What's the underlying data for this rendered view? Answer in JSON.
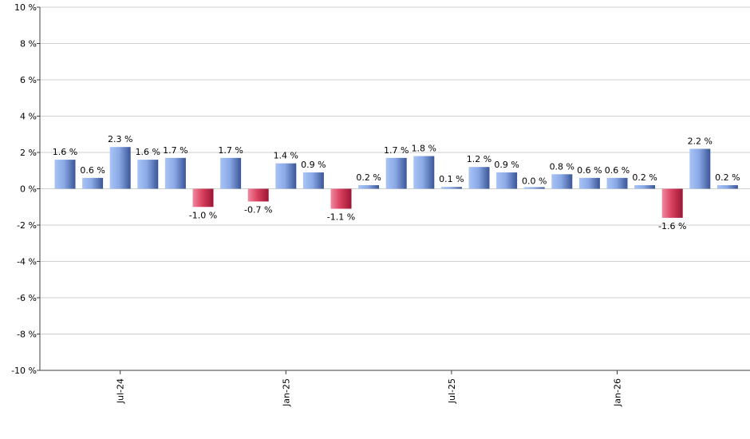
{
  "chart_data": {
    "type": "bar",
    "title": "",
    "xlabel": "",
    "ylabel": "",
    "ylim": [
      -10,
      10
    ],
    "y_ticks": [
      10,
      8,
      6,
      4,
      2,
      0,
      -2,
      -4,
      -6,
      -8,
      -10
    ],
    "y_tick_suffix": " %",
    "grid": true,
    "x_tick_labels": [
      {
        "label": "Jul-24",
        "bar_index": 2
      },
      {
        "label": "Jan-25",
        "bar_index": 8
      },
      {
        "label": "Jul-25",
        "bar_index": 14
      },
      {
        "label": "Jan-26",
        "bar_index": 20
      }
    ],
    "values": [
      1.6,
      0.6,
      2.3,
      1.6,
      1.7,
      -1.0,
      1.7,
      -0.7,
      1.4,
      0.9,
      -1.1,
      0.2,
      1.7,
      1.8,
      0.1,
      1.2,
      0.9,
      0.0,
      0.8,
      0.6,
      0.6,
      0.2,
      -1.6,
      2.2,
      0.2
    ],
    "value_labels": [
      "1.6 %",
      "0.6 %",
      "2.3 %",
      "1.6 %",
      "1.7 %",
      "-1.0 %",
      "1.7 %",
      "-0.7 %",
      "1.4 %",
      "0.9 %",
      "-1.1 %",
      "0.2 %",
      "1.7 %",
      "1.8 %",
      "0.1 %",
      "1.2 %",
      "0.9 %",
      "0.0 %",
      "0.8 %",
      "0.6 %",
      "0.6 %",
      "0.2 %",
      "-1.6 %",
      "2.2 %",
      "0.2 %"
    ],
    "colors": {
      "positive_light": "#a9c4f5",
      "positive_dark": "#3b5597",
      "negative_light": "#f08aa0",
      "negative_dark": "#9c1535",
      "grid": "#cfcfcf",
      "axis": "#404040"
    }
  }
}
